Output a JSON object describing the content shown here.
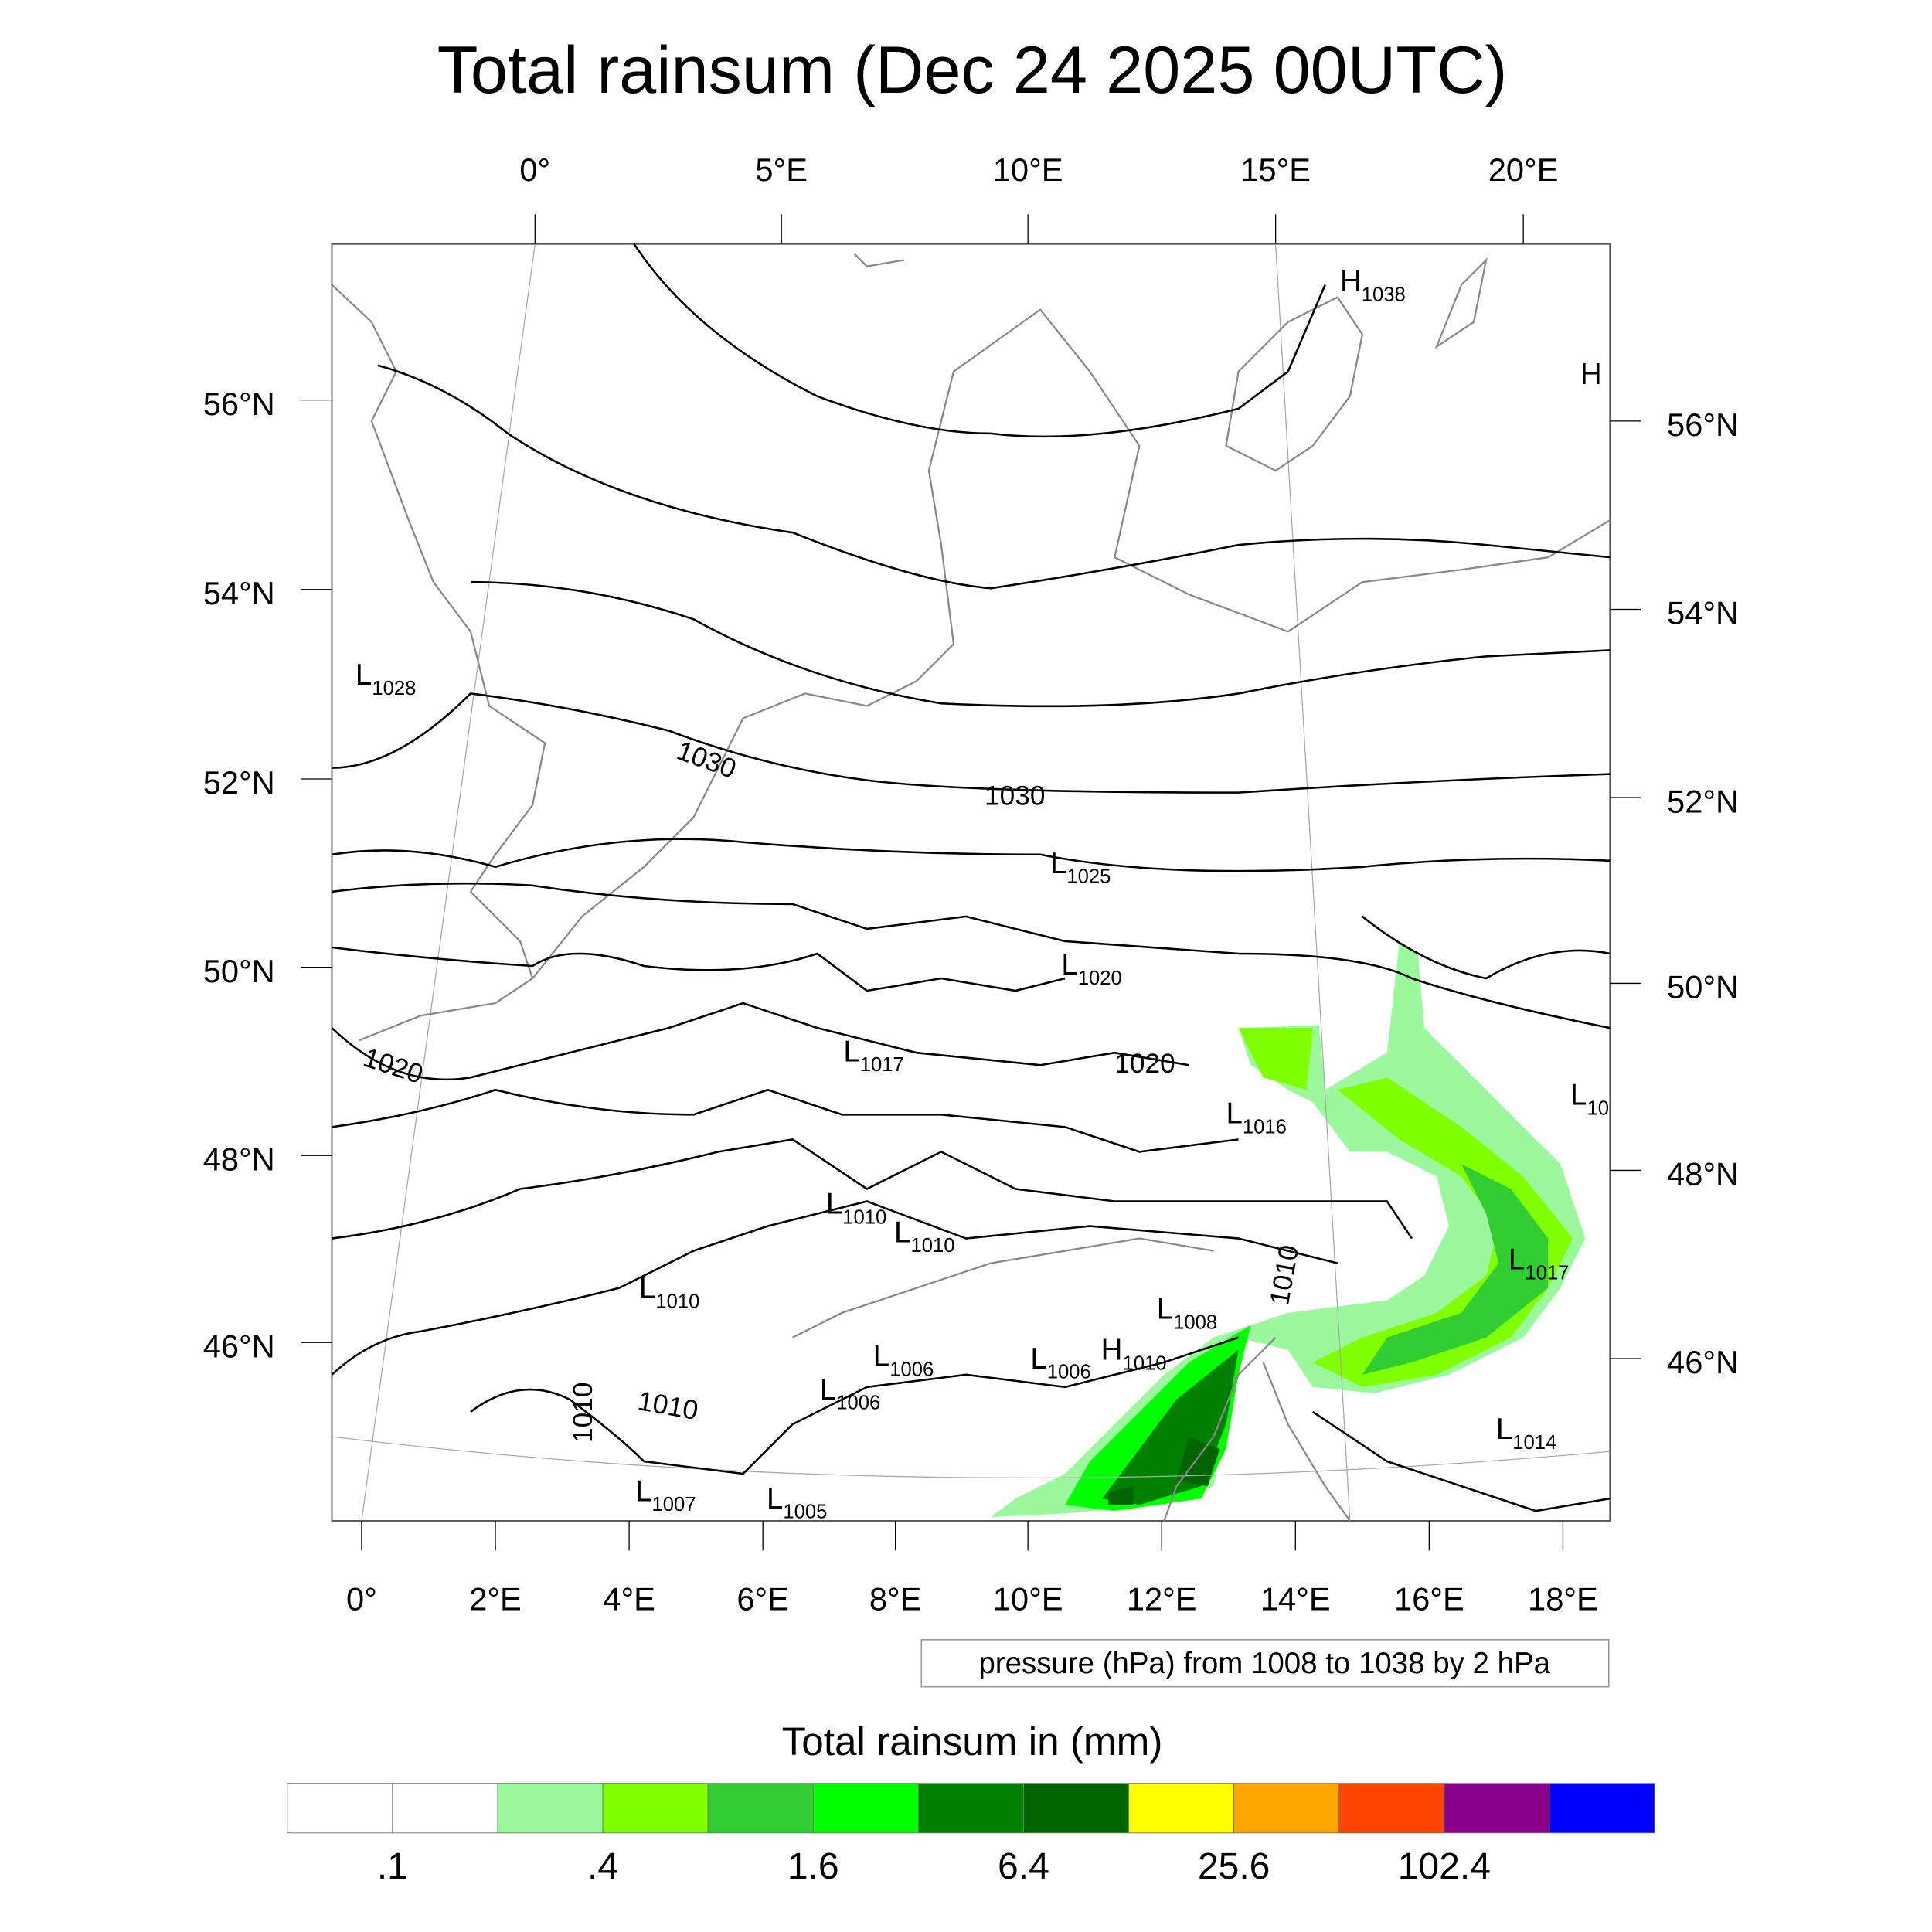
{
  "title": "Total rainsum (Dec 24 2025 00UTC)",
  "top_lon_labels": [
    "0°",
    "5°E",
    "10°E",
    "15°E",
    "20°E"
  ],
  "bottom_lon_labels": [
    "0°",
    "2°E",
    "4°E",
    "6°E",
    "8°E",
    "10°E",
    "12°E",
    "14°E",
    "16°E",
    "18°E"
  ],
  "left_lat_labels": [
    "56°N",
    "54°N",
    "52°N",
    "50°N",
    "48°N",
    "46°N"
  ],
  "right_lat_labels": [
    "56°N",
    "54°N",
    "52°N",
    "50°N",
    "48°N",
    "46°N"
  ],
  "contour_info": "pressure (hPa) from 1008 to 1038 by 2 hPa",
  "isobar_labels": [
    "1030",
    "1030",
    "1020",
    "1020",
    "1010",
    "1010",
    "1010"
  ],
  "pressure_centers": [
    {
      "type": "H",
      "value": "1038"
    },
    {
      "type": "H",
      "value": ""
    },
    {
      "type": "L",
      "value": "1028"
    },
    {
      "type": "L",
      "value": "1025"
    },
    {
      "type": "L",
      "value": "1020"
    },
    {
      "type": "L",
      "value": "1017"
    },
    {
      "type": "L",
      "value": "1016"
    },
    {
      "type": "L",
      "value": "10"
    },
    {
      "type": "L",
      "value": "1010"
    },
    {
      "type": "L",
      "value": "1010"
    },
    {
      "type": "L",
      "value": "1010"
    },
    {
      "type": "L",
      "value": "1017"
    },
    {
      "type": "L",
      "value": "1008"
    },
    {
      "type": "L",
      "value": "1006"
    },
    {
      "type": "L",
      "value": "1006"
    },
    {
      "type": "H",
      "value": "1010"
    },
    {
      "type": "L",
      "value": "1006"
    },
    {
      "type": "L",
      "value": "1014"
    },
    {
      "type": "L",
      "value": "1007"
    },
    {
      "type": "L",
      "value": "1005"
    }
  ],
  "colorbar": {
    "title": "Total rainsum in (mm)",
    "colors": [
      "#ffffff",
      "#ffffff",
      "#9cf89c",
      "#80ff00",
      "#32cd32",
      "#00ff00",
      "#008000",
      "#006400",
      "#ffff00",
      "#ffa500",
      "#ff4500",
      "#8b008b",
      "#0000ff"
    ],
    "labels": [
      ".1",
      ".4",
      "1.6",
      "6.4",
      "25.6",
      "102.4"
    ]
  }
}
